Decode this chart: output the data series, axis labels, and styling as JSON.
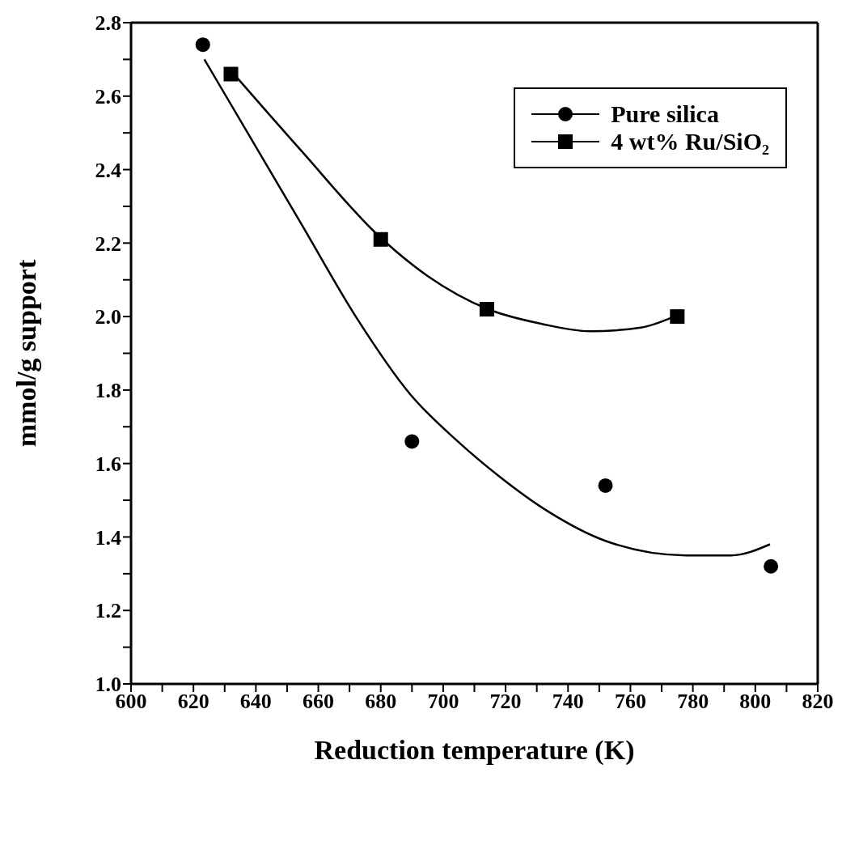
{
  "chart_data": {
    "type": "scatter",
    "xlabel": "Reduction temperature (K)",
    "ylabel": "mmol/g support",
    "xlim": [
      600,
      820
    ],
    "ylim": [
      1.0,
      2.8
    ],
    "xticks": [
      600,
      {
        "value": 610,
        "label": null
      },
      620,
      {
        "value": 630,
        "label": null
      },
      640,
      {
        "value": 650,
        "label": null
      },
      660,
      {
        "value": 670,
        "label": null
      },
      680,
      {
        "value": 690,
        "label": null
      },
      700,
      {
        "value": 710,
        "label": null
      },
      720,
      {
        "value": 730,
        "label": null
      },
      740,
      {
        "value": 750,
        "label": null
      },
      760,
      {
        "value": 770,
        "label": null
      },
      780,
      {
        "value": 790,
        "label": null
      },
      800,
      {
        "value": 810,
        "label": null
      },
      820
    ],
    "yticks": [
      {
        "value": 1.0,
        "label": "1.0"
      },
      {
        "value": 1.1,
        "label": null
      },
      {
        "value": 1.2,
        "label": "1.2"
      },
      {
        "value": 1.3,
        "label": null
      },
      {
        "value": 1.4,
        "label": "1.4"
      },
      {
        "value": 1.5,
        "label": null
      },
      {
        "value": 1.6,
        "label": "1.6"
      },
      {
        "value": 1.7,
        "label": null
      },
      {
        "value": 1.8,
        "label": "1.8"
      },
      {
        "value": 1.9,
        "label": null
      },
      {
        "value": 2.0,
        "label": "2.0"
      },
      {
        "value": 2.1,
        "label": null
      },
      {
        "value": 2.2,
        "label": "2.2"
      },
      {
        "value": 2.3,
        "label": null
      },
      {
        "value": 2.4,
        "label": "2.4"
      },
      {
        "value": 2.5,
        "label": null
      },
      {
        "value": 2.6,
        "label": "2.6"
      },
      {
        "value": 2.7,
        "label": null
      },
      {
        "value": 2.8,
        "label": "2.8"
      }
    ],
    "grid": false,
    "legend": "top right",
    "series": [
      {
        "name": "Pure silica",
        "marker": "circle",
        "color": "#000000",
        "x": [
          623,
          690,
          752,
          805
        ],
        "values": [
          2.74,
          1.66,
          1.54,
          1.32
        ]
      },
      {
        "name": "4 wt% Ru/SiO₂",
        "marker": "square",
        "color": "#000000",
        "x": [
          632,
          680,
          714,
          775
        ],
        "values": [
          2.66,
          2.21,
          2.02,
          2.0
        ]
      },
      {
        "type": "line",
        "marker": "none",
        "color": "#000000",
        "x": [
          623.5,
          654.7,
          672,
          689.3,
          704.7,
          717.2,
          733.5,
          751.8,
          777.8,
          792.2,
          804.7
        ],
        "values": [
          2.7,
          2.25,
          2.0,
          1.79,
          1.66,
          1.57,
          1.47,
          1.39,
          1.35,
          1.35,
          1.38
        ]
      },
      {
        "type": "line",
        "marker": "none",
        "color": "#000000",
        "x": [
          634,
          654.7,
          679.3,
          695.1,
          714.4,
          731.6,
          747,
          763.3,
          774
        ],
        "values": [
          2.65,
          2.45,
          2.22,
          2.11,
          2.02,
          1.98,
          1.96,
          1.97,
          2.0
        ]
      }
    ]
  }
}
